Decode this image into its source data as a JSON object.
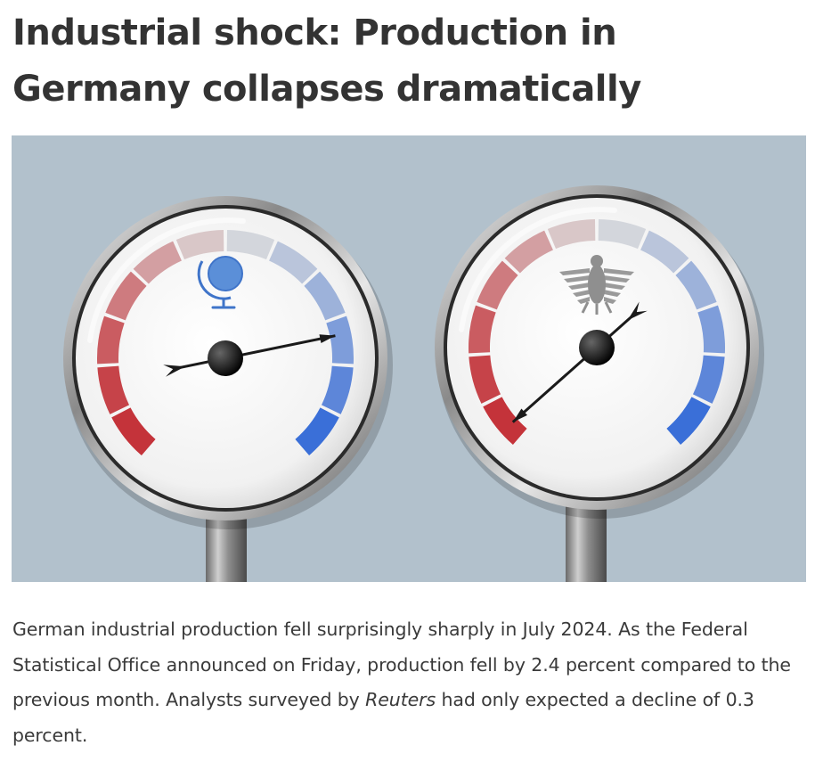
{
  "article": {
    "headline": "Industrial shock: Production in Germany collapses dramatically",
    "lead": {
      "part1": "German industrial production fell surprisingly sharply in July 2024. As the Federal Statistical Office announced on Friday, production fell by 2.4 percent compared to the previous month. Analysts surveyed by ",
      "source": "Reuters",
      "part2": " had only expected a decline of 0.3 percent."
    }
  },
  "hero_image": {
    "background": "#b2c1cc",
    "gauges": [
      {
        "name": "world",
        "emblem": "globe-icon",
        "needle_level": 0.78
      },
      {
        "name": "germany",
        "emblem": "eagle-emblem-icon",
        "needle_level": 0.03
      }
    ],
    "scale_colors": {
      "cold": "#c4333a",
      "neutral": "#dcdcdc",
      "warm": "#3a6fd8"
    }
  }
}
